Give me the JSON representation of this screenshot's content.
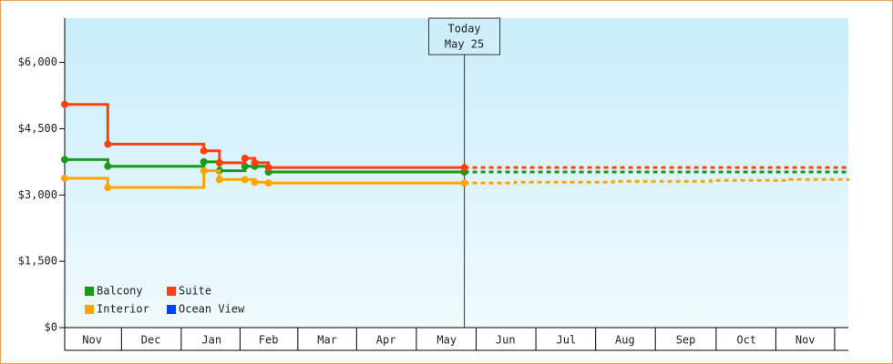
{
  "chart_data": {
    "type": "step-line",
    "xlim": [
      0,
      400
    ],
    "xticks": [
      {
        "value": 14,
        "label": "Nov"
      },
      {
        "value": 44,
        "label": "Dec"
      },
      {
        "value": 75,
        "label": "Jan"
      },
      {
        "value": 104,
        "label": "Feb"
      },
      {
        "value": 134,
        "label": "Mar"
      },
      {
        "value": 164,
        "label": "Apr"
      },
      {
        "value": 195,
        "label": "May"
      },
      {
        "value": 225,
        "label": "Jun"
      },
      {
        "value": 256,
        "label": "Jul"
      },
      {
        "value": 286,
        "label": "Aug"
      },
      {
        "value": 317,
        "label": "Sep"
      },
      {
        "value": 348,
        "label": "Oct"
      },
      {
        "value": 378,
        "label": "Nov"
      }
    ],
    "ylim": [
      0,
      7000
    ],
    "yticks": [
      {
        "value": 0,
        "label": "$0"
      },
      {
        "value": 1500,
        "label": "$1,500"
      },
      {
        "value": 3000,
        "label": "$3,000"
      },
      {
        "value": 4500,
        "label": "$4,500"
      },
      {
        "value": 6000,
        "label": "$6,000"
      }
    ],
    "annotation": {
      "x": 204,
      "lines": [
        "Today",
        "May 25"
      ]
    },
    "legend": "lower left",
    "series": [
      {
        "name": "Balcony",
        "color": "#1a9a1a",
        "x": [
          0,
          22,
          71,
          79,
          92,
          97,
          104,
          204
        ],
        "values": [
          3800,
          3650,
          3750,
          3550,
          3650,
          3650,
          3520,
          3520
        ],
        "forecast": {
          "x": [
            204,
            400
          ],
          "values": [
            3520,
            3520
          ]
        }
      },
      {
        "name": "Suite",
        "color": "#ff4010",
        "x": [
          0,
          22,
          71,
          79,
          92,
          97,
          104,
          204
        ],
        "values": [
          5050,
          4150,
          4000,
          3730,
          3830,
          3730,
          3620,
          3620
        ],
        "forecast": {
          "x": [
            204,
            400
          ],
          "values": [
            3620,
            3620
          ]
        }
      },
      {
        "name": "Interior",
        "color": "#ffa500",
        "x": [
          0,
          22,
          71,
          79,
          92,
          97,
          104,
          204
        ],
        "values": [
          3380,
          3170,
          3550,
          3350,
          3350,
          3290,
          3270,
          3270
        ],
        "forecast": {
          "x": [
            204,
            230,
            280,
            330,
            370,
            400
          ],
          "values": [
            3270,
            3290,
            3310,
            3330,
            3350,
            3370
          ]
        }
      },
      {
        "name": "Ocean View",
        "color": "#0040ff",
        "x": [],
        "values": [],
        "forecast": {
          "x": [],
          "values": []
        }
      }
    ]
  }
}
